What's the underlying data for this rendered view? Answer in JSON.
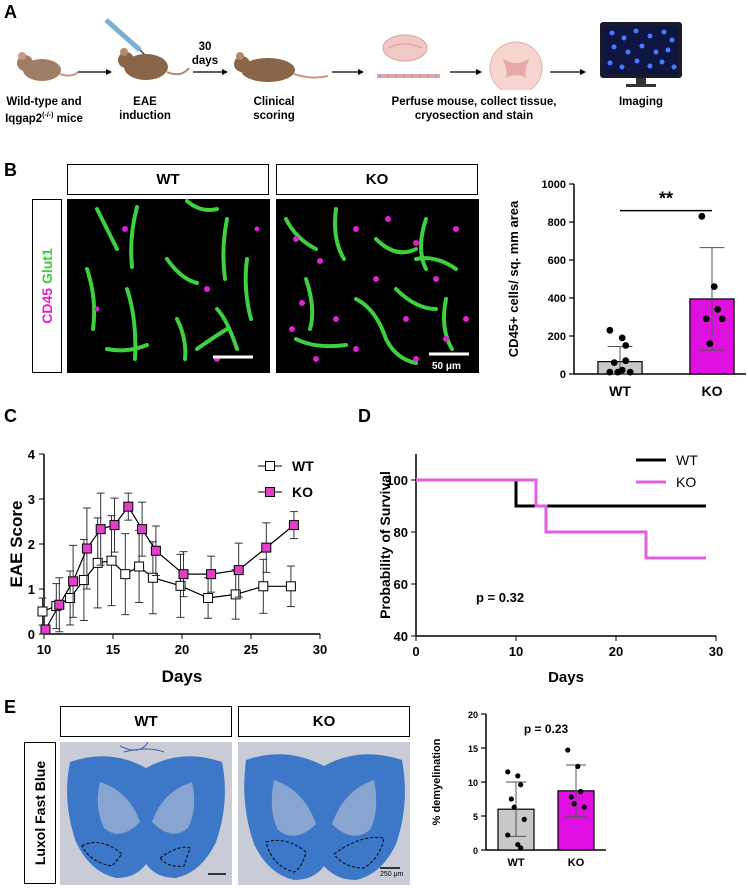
{
  "panels": {
    "A": "A",
    "B": "B",
    "C": "C",
    "D": "D",
    "E": "E"
  },
  "workflow": {
    "step1_line1": "Wild-type and",
    "step1_line2_prefix": "Iqgap2",
    "step1_line2_sup": "(-/-)",
    "step1_line2_suffix": " mice",
    "step2_line1": "EAE",
    "step2_line2": "induction",
    "delay_line1": "30",
    "delay_line2": "days",
    "step3_line1": "Clinical",
    "step3_line2": "scoring",
    "step4_line1": "Perfuse mouse, collect tissue,",
    "step4_line2": "cryosection and stain",
    "step5": "Imaging"
  },
  "panelB": {
    "wt_label": "WT",
    "ko_label": "KO",
    "stain_cd45": "CD45",
    "stain_glut1": " Glut1",
    "scalebar": "50 μm",
    "colors": {
      "cd45": "#e020d0",
      "glut1": "#40e040"
    }
  },
  "panelE": {
    "wt_label": "WT",
    "ko_label": "KO",
    "stain": "Luxol Fast Blue",
    "scalebar": "250 μm"
  },
  "chart_data": [
    {
      "panel": "B",
      "type": "bar",
      "categories": [
        "WT",
        "KO"
      ],
      "values": [
        65,
        395
      ],
      "errors": [
        80,
        270
      ],
      "points": [
        [
          230,
          190,
          150,
          60,
          10,
          10,
          10,
          20,
          70
        ],
        [
          830,
          460,
          340,
          290,
          160,
          290
        ]
      ],
      "colors": [
        "#c8c8c8",
        "#e010e0"
      ],
      "ylabel": "CD45+ cells/ sq. mm area",
      "ylim": [
        0,
        1000
      ],
      "yticks": [
        0,
        200,
        400,
        600,
        800,
        1000
      ],
      "significance": "**"
    },
    {
      "panel": "C",
      "type": "line",
      "xlabel": "Days",
      "ylabel": "EAE  Score",
      "xlim": [
        10,
        30
      ],
      "ylim": [
        0,
        4
      ],
      "xticks": [
        10,
        15,
        20,
        25,
        30
      ],
      "yticks": [
        0,
        1,
        2,
        3,
        4
      ],
      "legend_position": "top-right",
      "series": [
        {
          "name": "WT",
          "marker": "open-square",
          "color": "#ffffff",
          "x": [
            10,
            11,
            12,
            13,
            14,
            15,
            16,
            17,
            18,
            20,
            22,
            24,
            26,
            28
          ],
          "y": [
            0.5,
            0.62,
            0.8,
            1.2,
            1.58,
            1.63,
            1.33,
            1.5,
            1.25,
            1.07,
            0.8,
            0.88,
            1.06,
            1.06
          ],
          "err": [
            0.3,
            0.5,
            0.6,
            0.9,
            1.0,
            1.0,
            0.9,
            0.8,
            0.8,
            0.7,
            0.45,
            0.55,
            0.6,
            0.45
          ]
        },
        {
          "name": "KO",
          "marker": "filled-square",
          "color": "#e040c8",
          "x": [
            10,
            11,
            12,
            13,
            14,
            15,
            16,
            17,
            18,
            20,
            22,
            24,
            26,
            28
          ],
          "y": [
            0.1,
            0.65,
            1.17,
            1.9,
            2.33,
            2.42,
            2.83,
            2.33,
            1.85,
            1.33,
            1.33,
            1.42,
            1.92,
            2.42
          ],
          "err": [
            0.1,
            0.6,
            0.8,
            0.9,
            0.8,
            0.6,
            0.3,
            0.6,
            0.55,
            0.5,
            0.4,
            0.6,
            0.55,
            0.3
          ]
        }
      ]
    },
    {
      "panel": "D",
      "type": "line",
      "step": true,
      "xlabel": "Days",
      "ylabel": "Probability of Survival",
      "xlim": [
        0,
        30
      ],
      "ylim": [
        40,
        110
      ],
      "xticks": [
        0,
        10,
        20,
        30
      ],
      "yticks": [
        40,
        60,
        80,
        100
      ],
      "legend_position": "top-right",
      "annotation": "p = 0.32",
      "series": [
        {
          "name": "WT",
          "color": "#000000",
          "x": [
            0,
            10,
            10,
            29
          ],
          "y": [
            100,
            100,
            90,
            90
          ]
        },
        {
          "name": "KO",
          "color": "#e060e0",
          "x": [
            0,
            12,
            12,
            13,
            13,
            23,
            23,
            29
          ],
          "y": [
            100,
            100,
            90,
            90,
            80,
            80,
            70,
            70
          ]
        }
      ]
    },
    {
      "panel": "E",
      "type": "bar",
      "categories": [
        "WT",
        "KO"
      ],
      "values": [
        6,
        8.7
      ],
      "errors": [
        4,
        3.8
      ],
      "points": [
        [
          11.5,
          10.9,
          9.6,
          7.5,
          6.3,
          4.5,
          2.2,
          0.8,
          0.3
        ],
        [
          14.7,
          12.3,
          8.6,
          7.8,
          6.8,
          6.3
        ]
      ],
      "colors": [
        "#c8c8c8",
        "#e010e0"
      ],
      "ylabel": "% demyelination",
      "ylim": [
        0,
        20
      ],
      "yticks": [
        0,
        5,
        10,
        15,
        20
      ],
      "annotation": "p = 0.23"
    }
  ]
}
